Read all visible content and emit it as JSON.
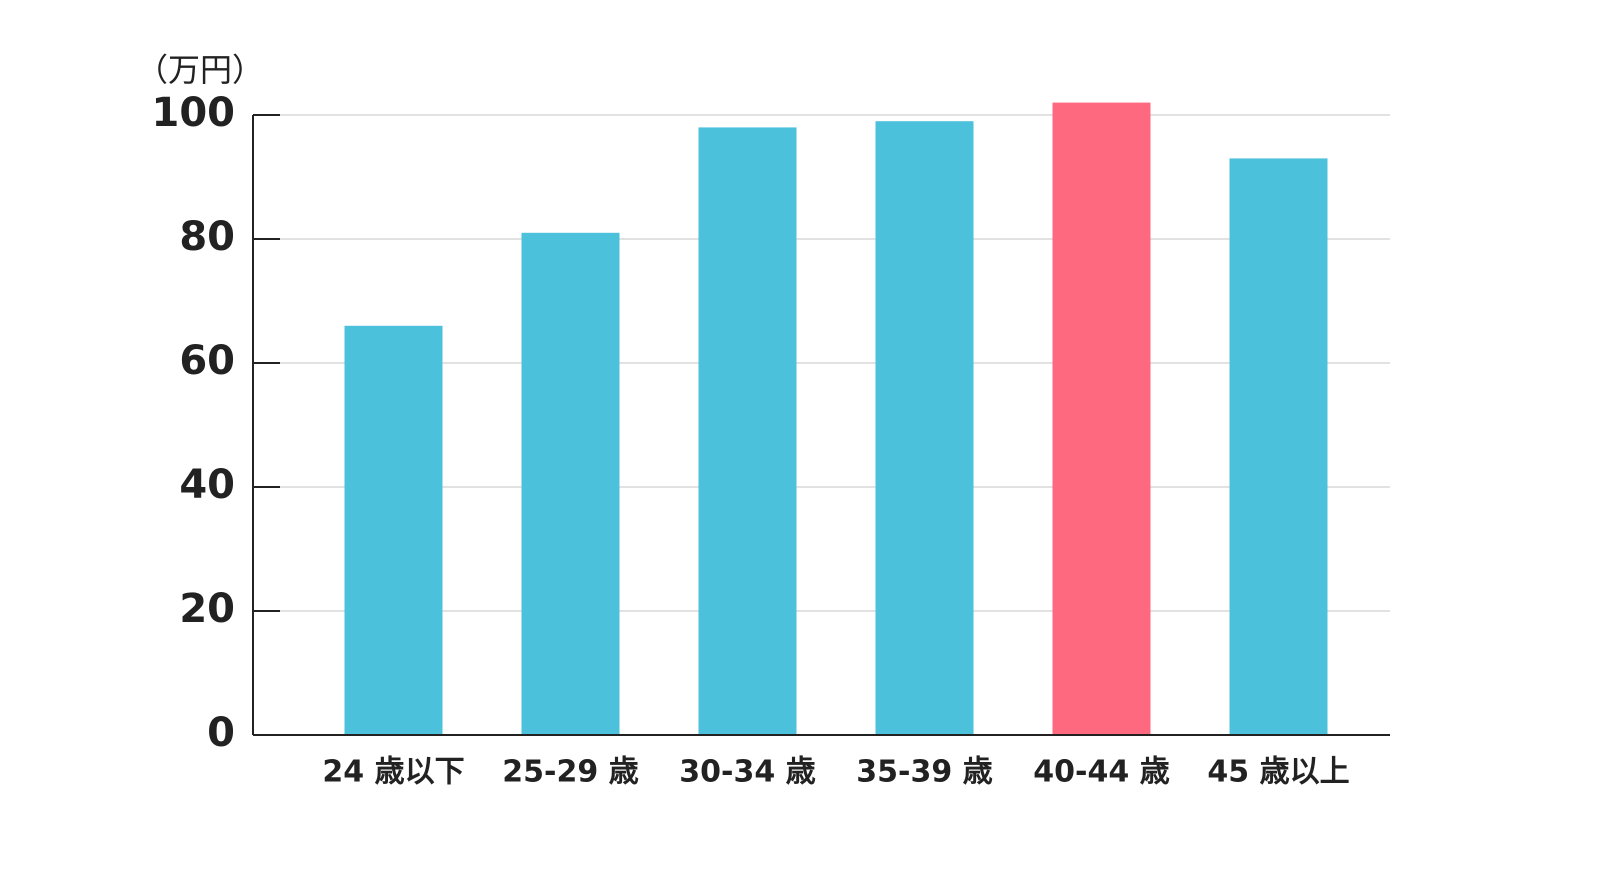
{
  "chart_data": {
    "type": "bar",
    "y_label": "（万円）",
    "categories": [
      "24 歳以下",
      "25-29 歳",
      "30-34 歳",
      "35-39 歳",
      "40-44 歳",
      "45 歳以上"
    ],
    "values": [
      66,
      81,
      98,
      99,
      102,
      93
    ],
    "colors": [
      "#4cc1db",
      "#4cc1db",
      "#4cc1db",
      "#4cc1db",
      "#ff697f",
      "#4cc1db"
    ],
    "ylim": [
      0,
      100
    ],
    "yticks": [
      0,
      20,
      40,
      60,
      80,
      100
    ],
    "grid": true
  }
}
